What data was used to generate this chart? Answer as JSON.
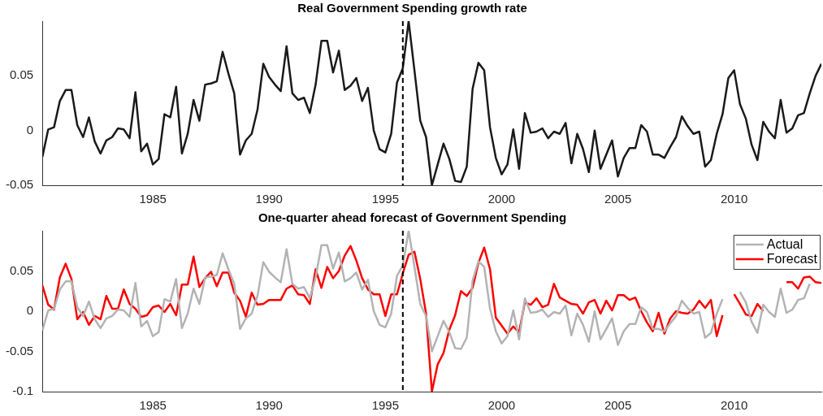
{
  "chart_data": [
    {
      "type": "line",
      "title": "Real Government Spending growth rate",
      "x": [
        1980.25,
        1980.5,
        1980.75,
        1981,
        1981.25,
        1981.5,
        1981.75,
        1982,
        1982.25,
        1982.5,
        1982.75,
        1983,
        1983.25,
        1983.5,
        1983.75,
        1984,
        1984.25,
        1984.5,
        1984.75,
        1985,
        1985.25,
        1985.5,
        1985.75,
        1986,
        1986.25,
        1986.5,
        1986.75,
        1987,
        1987.25,
        1987.5,
        1987.75,
        1988,
        1988.25,
        1988.5,
        1988.75,
        1989,
        1989.25,
        1989.5,
        1989.75,
        1990,
        1990.25,
        1990.5,
        1990.75,
        1991,
        1991.25,
        1991.5,
        1991.75,
        1992,
        1992.25,
        1992.5,
        1992.75,
        1993,
        1993.25,
        1993.5,
        1993.75,
        1994,
        1994.25,
        1994.5,
        1994.75,
        1995,
        1995.25,
        1995.5,
        1995.75,
        1996,
        1996.25,
        1996.5,
        1996.75,
        1997,
        1997.25,
        1997.5,
        1997.75,
        1998,
        1998.25,
        1998.5,
        1998.75,
        1999,
        1999.25,
        1999.5,
        1999.75,
        2000,
        2000.25,
        2000.5,
        2000.75,
        2001,
        2001.25,
        2001.5,
        2001.75,
        2002,
        2002.25,
        2002.5,
        2002.75,
        2003,
        2003.25,
        2003.5,
        2003.75,
        2004,
        2004.25,
        2004.5,
        2004.75,
        2005,
        2005.25,
        2005.5,
        2005.75,
        2006,
        2006.25,
        2006.5,
        2006.75,
        2007,
        2007.25,
        2007.5,
        2007.75,
        2008,
        2008.25,
        2008.5,
        2008.75,
        2009,
        2009.25,
        2009.5,
        2009.75,
        2010,
        2010.25,
        2010.5,
        2010.75,
        2011,
        2011.25,
        2011.5,
        2011.75,
        2012,
        2012.25,
        2012.5,
        2012.75,
        2013,
        2013.25,
        2013.5,
        2013.75
      ],
      "series": [
        {
          "color": "#1a1a1a",
          "values": [
            -0.024,
            0.001,
            0.003,
            0.027,
            0.037,
            0.037,
            0.005,
            -0.006,
            0.012,
            -0.01,
            -0.021,
            -0.009,
            -0.006,
            0.002,
            0.001,
            -0.007,
            0.035,
            -0.019,
            -0.012,
            -0.031,
            -0.026,
            0.015,
            0.012,
            0.04,
            -0.021,
            -0.003,
            0.028,
            0.009,
            0.042,
            0.043,
            0.045,
            0.072,
            0.052,
            0.034,
            -0.022,
            -0.009,
            -0.003,
            0.019,
            0.061,
            0.049,
            0.042,
            0.036,
            0.077,
            0.034,
            0.028,
            0.03,
            0.016,
            0.042,
            0.082,
            0.082,
            0.053,
            0.073,
            0.037,
            0.041,
            0.048,
            0.027,
            0.039,
            0.0,
            -0.017,
            -0.02,
            -0.003,
            0.044,
            0.057,
            0.1,
            0.055,
            0.009,
            -0.006,
            -0.05,
            -0.031,
            -0.012,
            -0.026,
            -0.046,
            -0.047,
            -0.033,
            0.038,
            0.062,
            0.055,
            0.003,
            -0.025,
            -0.04,
            -0.031,
            0.001,
            -0.035,
            0.016,
            -0.002,
            -0.001,
            0.002,
            -0.007,
            -0.001,
            -0.003,
            0.007,
            -0.03,
            -0.003,
            -0.017,
            -0.038,
            0.0,
            -0.035,
            -0.022,
            -0.009,
            -0.042,
            -0.025,
            -0.016,
            -0.016,
            0.005,
            -0.001,
            -0.022,
            -0.022,
            -0.025,
            -0.015,
            -0.006,
            0.013,
            0.004,
            -0.003,
            -0.001,
            -0.033,
            -0.027,
            -0.003,
            0.015,
            0.048,
            0.055,
            0.024,
            0.011,
            -0.013,
            -0.027,
            0.008,
            -0.001,
            -0.007,
            0.028,
            -0.002,
            0.002,
            0.014,
            0.016,
            0.034,
            0.05,
            0.061
          ]
        }
      ],
      "xlim": [
        1980.25,
        2013.75
      ],
      "xticks": [
        1985,
        1990,
        1995,
        2000,
        2005,
        2010
      ],
      "ylim": [
        -0.05,
        0.1
      ],
      "yticks": [
        -0.05,
        0,
        0.05
      ],
      "ref_lines": [
        {
          "axis": "x",
          "value": 1995.75,
          "color": "#000000",
          "line_style": "dashed"
        }
      ],
      "grid": false,
      "legend": false,
      "marker": "none"
    },
    {
      "type": "line",
      "title": "One-quarter ahead forecast of Government Spending",
      "x": [
        1980.25,
        1980.5,
        1980.75,
        1981,
        1981.25,
        1981.5,
        1981.75,
        1982,
        1982.25,
        1982.5,
        1982.75,
        1983,
        1983.25,
        1983.5,
        1983.75,
        1984,
        1984.25,
        1984.5,
        1984.75,
        1985,
        1985.25,
        1985.5,
        1985.75,
        1986,
        1986.25,
        1986.5,
        1986.75,
        1987,
        1987.25,
        1987.5,
        1987.75,
        1988,
        1988.25,
        1988.5,
        1988.75,
        1989,
        1989.25,
        1989.5,
        1989.75,
        1990,
        1990.25,
        1990.5,
        1990.75,
        1991,
        1991.25,
        1991.5,
        1991.75,
        1992,
        1992.25,
        1992.5,
        1992.75,
        1993,
        1993.25,
        1993.5,
        1993.75,
        1994,
        1994.25,
        1994.5,
        1994.75,
        1995,
        1995.25,
        1995.5,
        1995.75,
        1996,
        1996.25,
        1996.5,
        1996.75,
        1997,
        1997.25,
        1997.5,
        1997.75,
        1998,
        1998.25,
        1998.5,
        1998.75,
        1999,
        1999.25,
        1999.5,
        1999.75,
        2000,
        2000.25,
        2000.5,
        2000.75,
        2001,
        2001.25,
        2001.5,
        2001.75,
        2002,
        2002.25,
        2002.5,
        2002.75,
        2003,
        2003.25,
        2003.5,
        2003.75,
        2004,
        2004.25,
        2004.5,
        2004.75,
        2005,
        2005.25,
        2005.5,
        2005.75,
        2006,
        2006.25,
        2006.5,
        2006.75,
        2007,
        2007.25,
        2007.5,
        2007.75,
        2008,
        2008.25,
        2008.5,
        2008.75,
        2009,
        2009.25,
        2009.5,
        2009.75,
        2010,
        2010.25,
        2010.5,
        2010.75,
        2011,
        2011.25,
        2011.5,
        2011.75,
        2012,
        2012.25,
        2012.5,
        2012.75,
        2013,
        2013.25,
        2013.5,
        2013.75
      ],
      "series": [
        {
          "name": "Actual",
          "color": "#b3b3b3",
          "values": [
            -0.024,
            0.001,
            0.003,
            0.027,
            0.037,
            0.037,
            0.005,
            -0.006,
            0.012,
            -0.01,
            -0.021,
            -0.009,
            -0.006,
            0.002,
            0.001,
            -0.007,
            0.035,
            -0.019,
            -0.012,
            -0.031,
            -0.026,
            0.015,
            0.012,
            0.04,
            -0.021,
            -0.003,
            0.028,
            0.009,
            0.042,
            0.043,
            0.045,
            0.072,
            0.052,
            0.034,
            -0.022,
            -0.009,
            -0.003,
            0.019,
            0.061,
            0.049,
            0.042,
            0.036,
            0.077,
            0.034,
            0.028,
            0.03,
            0.016,
            0.042,
            0.082,
            0.082,
            0.053,
            0.073,
            0.037,
            0.041,
            0.048,
            0.027,
            0.039,
            0.0,
            -0.017,
            -0.02,
            -0.003,
            0.044,
            0.057,
            0.1,
            0.055,
            0.009,
            -0.006,
            -0.05,
            -0.031,
            -0.012,
            -0.026,
            -0.046,
            -0.047,
            -0.033,
            0.038,
            0.062,
            0.055,
            0.003,
            -0.025,
            -0.04,
            -0.031,
            0.001,
            -0.035,
            0.016,
            -0.002,
            -0.001,
            0.002,
            -0.007,
            -0.001,
            -0.003,
            0.007,
            -0.03,
            -0.003,
            -0.017,
            -0.038,
            0.0,
            -0.035,
            -0.022,
            -0.009,
            -0.042,
            -0.025,
            -0.016,
            -0.016,
            0.005,
            -0.001,
            -0.022,
            -0.022,
            -0.025,
            -0.015,
            -0.006,
            0.013,
            0.004,
            -0.003,
            -0.001,
            -0.033,
            -0.027,
            -0.003,
            0.015,
            null,
            null,
            0.024,
            0.011,
            -0.013,
            -0.027,
            0.008,
            -0.001,
            -0.007,
            0.028,
            -0.002,
            0.002,
            0.014,
            0.016,
            0.034,
            null,
            null
          ]
        },
        {
          "name": "Forecast",
          "color": "#ff0000",
          "values": [
            0.032,
            0.008,
            0.002,
            0.042,
            0.059,
            0.04,
            -0.01,
            -0.001,
            -0.017,
            -0.006,
            -0.01,
            0.019,
            0.003,
            0.003,
            0.027,
            0.009,
            0.003,
            -0.007,
            -0.005,
            0.005,
            0.007,
            -0.001,
            0.009,
            -0.005,
            0.033,
            0.033,
            0.068,
            0.03,
            0.041,
            0.049,
            0.031,
            0.048,
            0.048,
            0.023,
            0.013,
            -0.007,
            0.023,
            0.008,
            0.009,
            0.014,
            0.014,
            0.014,
            0.028,
            0.032,
            0.021,
            0.02,
            0.009,
            0.052,
            0.029,
            0.055,
            0.041,
            0.05,
            0.069,
            0.081,
            0.063,
            0.041,
            0.027,
            0.021,
            0.021,
            -0.006,
            0.021,
            0.021,
            0.047,
            0.07,
            0.074,
            0.04,
            -0.003,
            -0.1,
            -0.066,
            -0.052,
            -0.023,
            -0.005,
            0.025,
            0.019,
            0.029,
            0.06,
            0.079,
            0.052,
            -0.008,
            -0.018,
            -0.028,
            -0.019,
            -0.026,
            0.011,
            0.008,
            0.016,
            0.005,
            0.008,
            0.034,
            0.017,
            0.013,
            0.009,
            0.008,
            -0.003,
            0.011,
            0.014,
            -0.003,
            0.013,
            0.001,
            0.02,
            0.02,
            0.014,
            0.017,
            0.0,
            -0.014,
            -0.025,
            -0.002,
            -0.028,
            -0.009,
            0.0,
            -0.002,
            -0.003,
            0.002,
            0.013,
            0.004,
            0.014,
            -0.031,
            -0.005,
            null,
            0.021,
            0.009,
            -0.004,
            -0.006,
            0.009,
            0.0,
            null,
            null,
            null,
            0.036,
            0.036,
            0.028,
            0.042,
            0.043,
            0.036,
            0.035
          ]
        }
      ],
      "xlim": [
        1980.25,
        2013.75
      ],
      "xticks": [
        1985,
        1990,
        1995,
        2000,
        2005,
        2010
      ],
      "ylim": [
        -0.1,
        0.1
      ],
      "yticks": [
        -0.1,
        -0.05,
        0,
        0.05
      ],
      "ref_lines": [
        {
          "axis": "x",
          "value": 1995.75,
          "color": "#000000",
          "line_style": "dashed"
        }
      ],
      "grid": false,
      "legend": "top right",
      "marker": "none"
    }
  ]
}
